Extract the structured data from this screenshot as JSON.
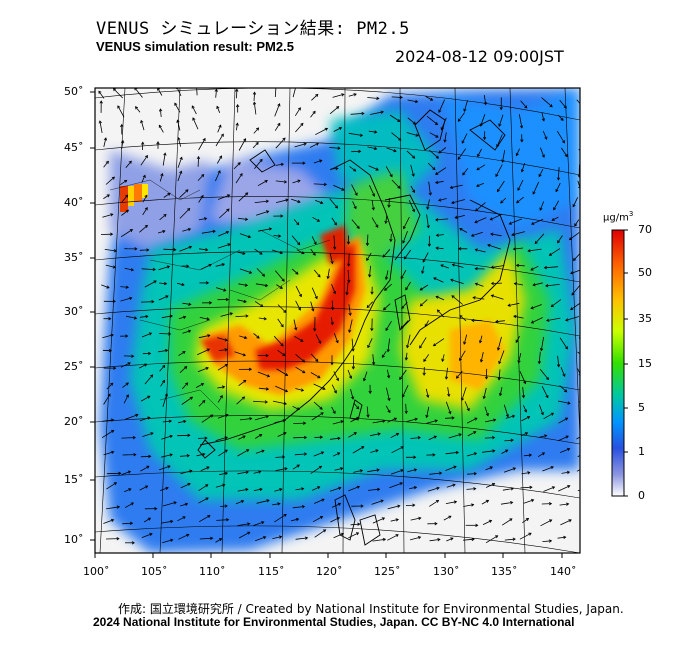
{
  "title_jp": "VENUS シミュレーション結果: PM2.5",
  "title_en": "VENUS simulation result: PM2.5",
  "timestamp": "2024-08-12 09:00JST",
  "credit": "作成: 国立環境研究所 / Created by National Institute for Environmental Studies, Japan.",
  "copyright": "2024 National Institute for Environmental Studies, Japan. CC BY-NC 4.0 International",
  "colorbar": {
    "unit_prefix": "μg/m",
    "unit_sup": "3",
    "ticks": [
      "70",
      "50",
      "35",
      "15",
      "5",
      "1",
      "0"
    ],
    "colors": [
      "#ff0000",
      "#ff6a00",
      "#ffbf00",
      "#f2ff00",
      "#7fff00",
      "#00e050",
      "#00c8c8",
      "#0078ff",
      "#3a4bd0",
      "#7c8ae0",
      "#ffffff"
    ]
  },
  "axes": {
    "longitude_labels": [
      "100˚",
      "105˚",
      "110˚",
      "115˚",
      "120˚",
      "125˚",
      "130˚",
      "135˚",
      "140˚"
    ],
    "latitude_labels": [
      "50˚",
      "45˚",
      "40˚",
      "35˚",
      "30˚",
      "25˚",
      "20˚",
      "15˚",
      "10˚"
    ]
  },
  "map": {
    "variable": "PM2.5",
    "region": "East Asia",
    "lon_range": [
      100,
      141
    ],
    "lat_range": [
      9,
      51
    ],
    "ocean_color": "#f4f4f4",
    "land_outline_color": "#000000"
  }
}
